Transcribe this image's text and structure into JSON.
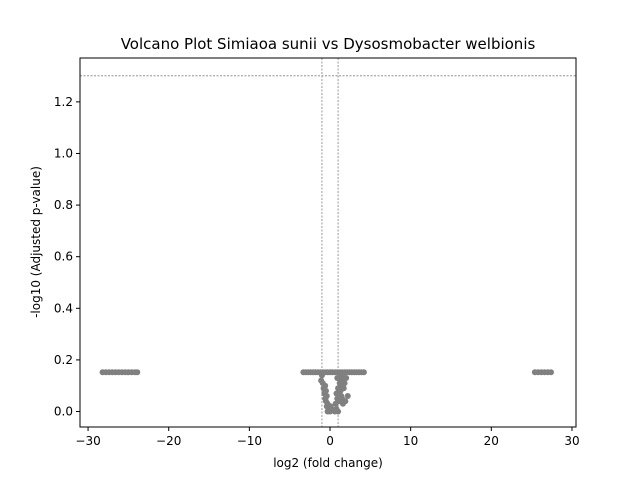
{
  "chart_data": {
    "type": "scatter",
    "title": "Volcano Plot Simiaoa sunii vs Dysosmobacter welbionis",
    "xlabel": "log2 (fold change)",
    "ylabel": "-log10 (Adjusted p-value)",
    "xlim": [
      -31,
      30.5
    ],
    "ylim": [
      -0.06,
      1.37
    ],
    "xticks": [
      -30,
      -20,
      -10,
      0,
      10,
      20,
      30
    ],
    "xtick_labels": [
      "−30",
      "−20",
      "−10",
      "0",
      "10",
      "20",
      "30"
    ],
    "yticks": [
      0.0,
      0.2,
      0.4,
      0.6,
      0.8,
      1.0,
      1.2
    ],
    "ytick_labels": [
      "0.0",
      "0.2",
      "0.4",
      "0.6",
      "0.8",
      "1.0",
      "1.2"
    ],
    "grid": false,
    "point_color": "#808080",
    "threshold_lines": {
      "hline_y": 1.301,
      "vlines_x": [
        -1,
        1
      ],
      "color": "#808080"
    },
    "points": [
      [
        -28.2,
        0.152
      ],
      [
        -27.8,
        0.152
      ],
      [
        -27.4,
        0.152
      ],
      [
        -27.0,
        0.152
      ],
      [
        -26.6,
        0.152
      ],
      [
        -26.2,
        0.152
      ],
      [
        -25.8,
        0.152
      ],
      [
        -25.4,
        0.152
      ],
      [
        -25.0,
        0.152
      ],
      [
        -24.6,
        0.152
      ],
      [
        -24.2,
        0.152
      ],
      [
        -23.9,
        0.152
      ],
      [
        25.4,
        0.152
      ],
      [
        25.8,
        0.152
      ],
      [
        26.2,
        0.152
      ],
      [
        26.6,
        0.152
      ],
      [
        27.0,
        0.152
      ],
      [
        27.4,
        0.152
      ],
      [
        -3.3,
        0.152
      ],
      [
        -3.0,
        0.152
      ],
      [
        -2.7,
        0.152
      ],
      [
        -2.4,
        0.152
      ],
      [
        -2.1,
        0.152
      ],
      [
        -1.8,
        0.152
      ],
      [
        -1.5,
        0.152
      ],
      [
        -1.2,
        0.152
      ],
      [
        -0.9,
        0.152
      ],
      [
        -0.6,
        0.152
      ],
      [
        -0.3,
        0.152
      ],
      [
        0.0,
        0.152
      ],
      [
        0.3,
        0.152
      ],
      [
        0.6,
        0.152
      ],
      [
        0.9,
        0.152
      ],
      [
        1.2,
        0.152
      ],
      [
        1.5,
        0.152
      ],
      [
        1.8,
        0.152
      ],
      [
        2.1,
        0.152
      ],
      [
        2.4,
        0.152
      ],
      [
        2.7,
        0.152
      ],
      [
        3.0,
        0.152
      ],
      [
        3.3,
        0.152
      ],
      [
        3.6,
        0.152
      ],
      [
        3.9,
        0.152
      ],
      [
        4.2,
        0.152
      ],
      [
        -1.0,
        0.14
      ],
      [
        -1.1,
        0.12
      ],
      [
        -0.9,
        0.11
      ],
      [
        -0.6,
        0.1
      ],
      [
        -0.8,
        0.09
      ],
      [
        -0.5,
        0.08
      ],
      [
        -0.7,
        0.07
      ],
      [
        -0.4,
        0.06
      ],
      [
        -0.6,
        0.05
      ],
      [
        -0.5,
        0.04
      ],
      [
        -0.3,
        0.03
      ],
      [
        -0.4,
        0.02
      ],
      [
        -0.2,
        0.01
      ],
      [
        -0.3,
        0.0
      ],
      [
        0.0,
        0.0
      ],
      [
        0.2,
        0.01
      ],
      [
        0.1,
        0.02
      ],
      [
        0.6,
        0.0
      ],
      [
        0.8,
        0.01
      ],
      [
        1.0,
        0.0
      ],
      [
        0.7,
        0.03
      ],
      [
        0.9,
        0.05
      ],
      [
        0.8,
        0.07
      ],
      [
        1.0,
        0.09
      ],
      [
        1.2,
        0.11
      ],
      [
        1.4,
        0.1
      ],
      [
        1.6,
        0.12
      ],
      [
        1.5,
        0.14
      ],
      [
        1.1,
        0.13
      ],
      [
        1.3,
        0.08
      ],
      [
        1.7,
        0.09
      ],
      [
        1.2,
        0.06
      ],
      [
        1.5,
        0.05
      ],
      [
        1.9,
        0.04
      ],
      [
        1.6,
        0.03
      ],
      [
        1.2,
        0.04
      ],
      [
        0.9,
        0.13
      ],
      [
        2.2,
        0.06
      ],
      [
        1.8,
        0.11
      ],
      [
        2.0,
        0.13
      ],
      [
        1.4,
        0.06
      ]
    ]
  }
}
